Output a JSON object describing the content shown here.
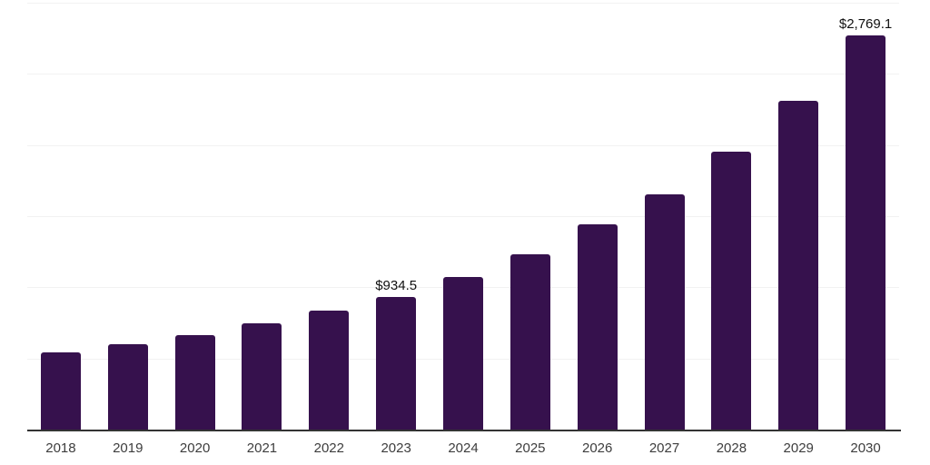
{
  "chart_data": {
    "type": "bar",
    "title": "",
    "xlabel": "",
    "ylabel": "",
    "categories": [
      "2018",
      "2019",
      "2020",
      "2021",
      "2022",
      "2023",
      "2024",
      "2025",
      "2026",
      "2027",
      "2028",
      "2029",
      "2030"
    ],
    "values": [
      540,
      597,
      667,
      750,
      839,
      934.5,
      1072,
      1235,
      1440,
      1653,
      1953,
      2311,
      2769.1
    ],
    "data_labels": {
      "2023": "$934.5",
      "2030": "$2,769.1"
    },
    "ylim": [
      0,
      3000
    ],
    "gridline_interval": 500,
    "grid": true,
    "legend_position": "none",
    "colors": {
      "bar": "#36114d",
      "gridline": "#f2f2f2",
      "axis": "#333333",
      "tick_label": "#3d3d3d",
      "data_label": "#111111"
    }
  }
}
